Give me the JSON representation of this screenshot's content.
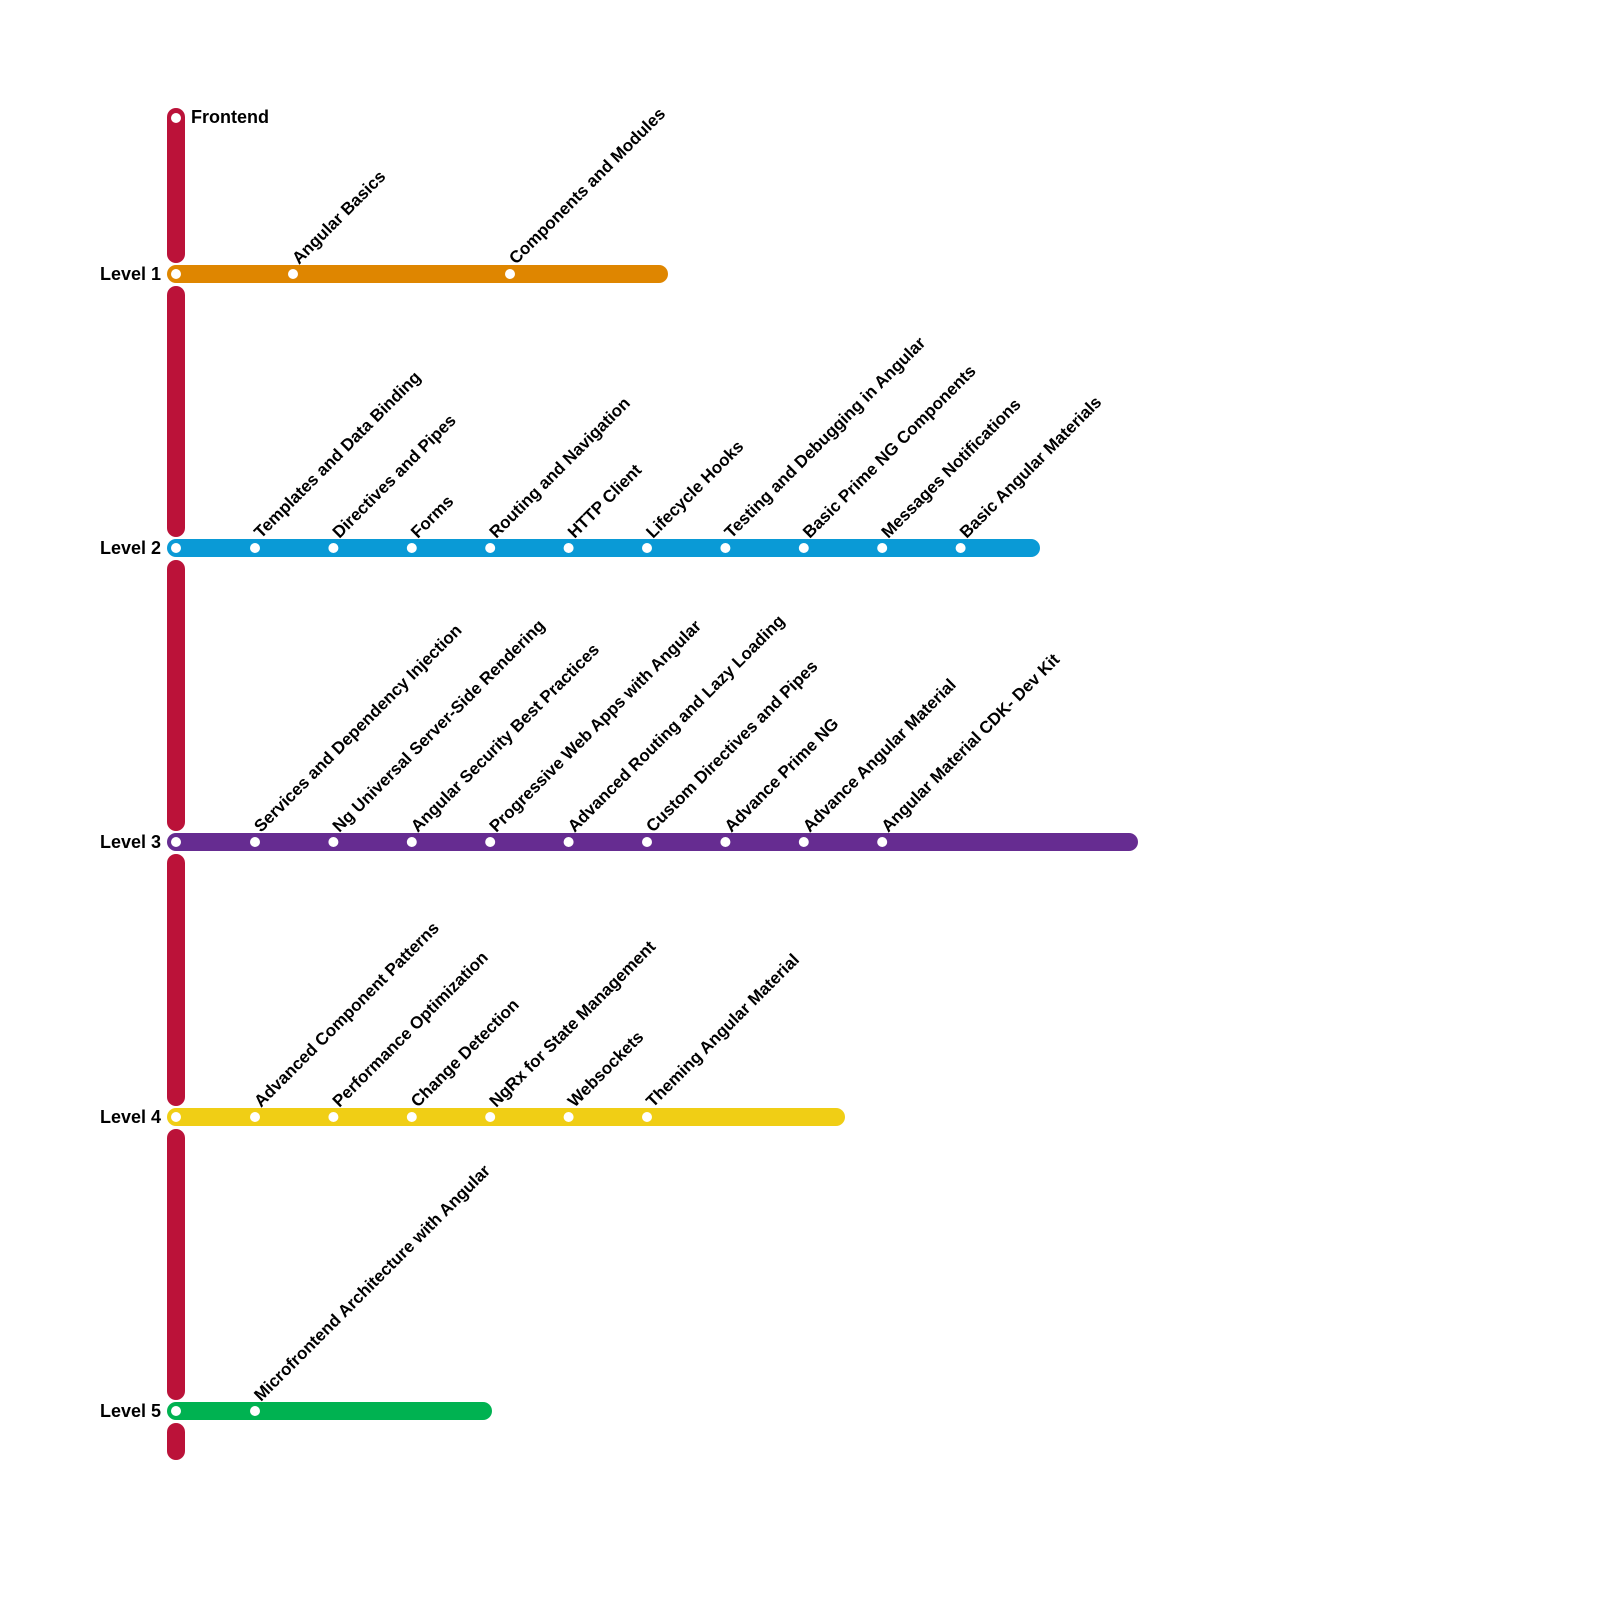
{
  "title": "Frontend",
  "trunk_color": "#BB1239",
  "levels": [
    {
      "label": "Level 1",
      "color": "#DF8600",
      "stations": [
        "Angular Basics",
        "Components and Modules"
      ]
    },
    {
      "label": "Level 2",
      "color": "#0A9AD6",
      "stations": [
        "Templates and Data Binding",
        "Directives and Pipes",
        "Forms",
        "Routing and Navigation",
        "HTTP Client",
        "Lifecycle Hooks",
        "Testing and Debugging in Angular",
        "Basic Prime NG Components",
        "Messages  Notifications",
        "Basic Angular Materials"
      ]
    },
    {
      "label": "Level 3",
      "color": "#662C91",
      "stations": [
        "Services and Dependency Injection",
        "Ng Universal  Server-Side Rendering",
        "Angular Security Best Practices",
        "Progressive Web Apps with Angular",
        "Advanced Routing and Lazy Loading",
        "Custom Directives and Pipes",
        "Advance Prime NG",
        "Advance Angular Material",
        "Angular Material CDK- Dev Kit"
      ]
    },
    {
      "label": "Level 4",
      "color": "#F0CE15",
      "stations": [
        "Advanced Component Patterns",
        "Performance Optimization",
        "Change Detection",
        "NgRx for State Management",
        "Websockets",
        "Theming Angular Material"
      ]
    },
    {
      "label": "Level 5",
      "color": "#00B251",
      "stations": [
        "Microfrontend Architecture with Angular"
      ]
    }
  ]
}
